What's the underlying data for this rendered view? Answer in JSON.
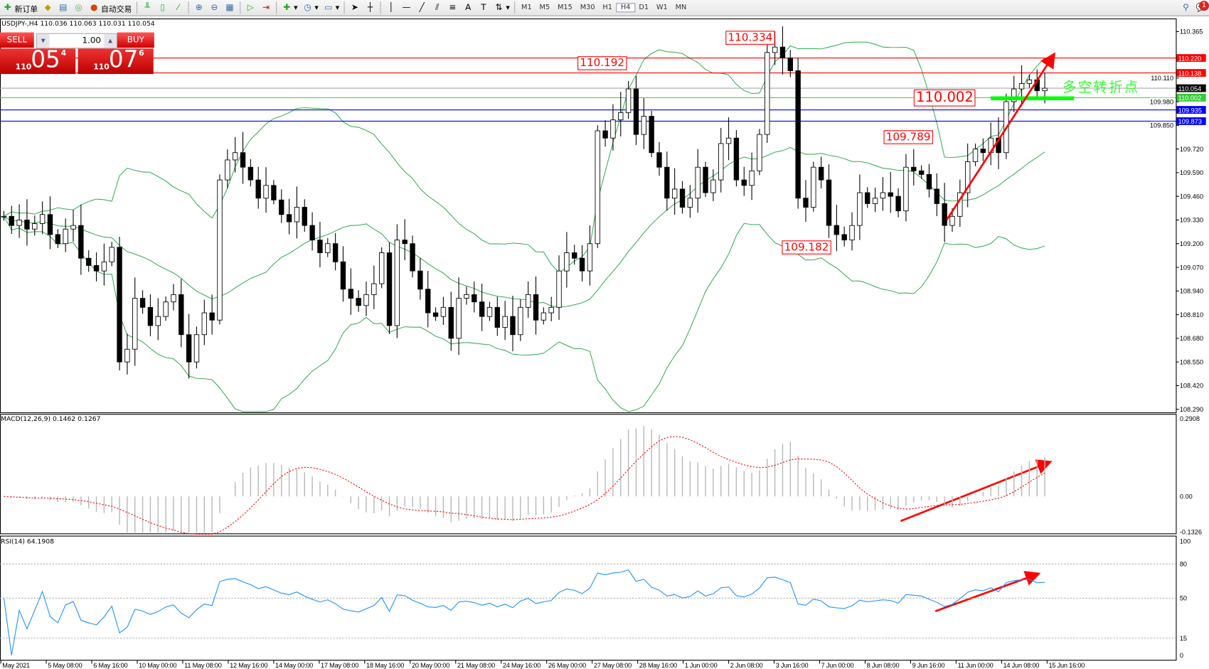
{
  "toolbar": {
    "new_order": "新订单",
    "auto_trading": "自动交易",
    "timeframes": [
      "M1",
      "M5",
      "M15",
      "M30",
      "H1",
      "H4",
      "D1",
      "W1",
      "MN"
    ],
    "active_timeframe": "H4",
    "notification_count": "1"
  },
  "chart": {
    "title": "USDJPY-,H4  110.036 110.063 110.031 110.054"
  },
  "trade_panel": {
    "sell_label": "SELL",
    "buy_label": "BUY",
    "lot": "1.00",
    "sell_small": "110",
    "sell_big": "05",
    "sell_tick": "4",
    "buy_small": "110",
    "buy_big": "07",
    "buy_tick": "6"
  },
  "annotations": {
    "high1": "110.334",
    "high2": "110.192",
    "level": "110.002",
    "mid": "109.789",
    "low": "109.182",
    "note": "多空转折点"
  },
  "colors": {
    "candle_up": "#ffffff",
    "candle_down": "#000000",
    "bands": "#2aa84a",
    "arrow": "#ff0000",
    "macd_signal": "#ff0000",
    "rsi": "#1e90ff"
  },
  "chart_data": [
    {
      "type": "candlestick",
      "symbol": "USDJPY-",
      "timeframe": "H4",
      "ylim": [
        108.29,
        110.365
      ],
      "price_ticks": [
        "110.365",
        "110.110",
        "109.980",
        "109.850",
        "109.720",
        "109.590",
        "109.460",
        "109.330",
        "109.200",
        "109.070",
        "108.940",
        "108.810",
        "108.680",
        "108.550",
        "108.420",
        "108.290"
      ],
      "closes": [
        109.35,
        109.3,
        109.33,
        109.28,
        109.31,
        109.36,
        109.25,
        109.2,
        109.28,
        109.3,
        109.12,
        109.08,
        109.05,
        109.1,
        109.18,
        108.55,
        108.62,
        108.9,
        108.85,
        108.75,
        108.8,
        108.88,
        108.92,
        108.7,
        108.55,
        108.7,
        108.82,
        108.78,
        109.55,
        109.66,
        109.7,
        109.62,
        109.55,
        109.45,
        109.52,
        109.44,
        109.36,
        109.32,
        109.4,
        109.3,
        109.22,
        109.15,
        109.2,
        109.1,
        108.95,
        108.9,
        108.86,
        108.92,
        108.98,
        109.15,
        108.75,
        109.22,
        109.2,
        109.05,
        108.95,
        108.82,
        108.8,
        108.85,
        108.68,
        108.9,
        108.92,
        108.88,
        108.8,
        108.85,
        108.74,
        108.8,
        108.7,
        108.85,
        108.92,
        108.78,
        108.82,
        108.85,
        109.05,
        109.15,
        109.12,
        109.05,
        109.2,
        109.82,
        109.78,
        109.88,
        109.92,
        110.05,
        109.8,
        109.9,
        109.7,
        109.62,
        109.45,
        109.5,
        109.4,
        109.45,
        109.62,
        109.48,
        109.55,
        109.75,
        109.78,
        109.55,
        109.52,
        109.6,
        109.8,
        110.25,
        110.28,
        110.22,
        110.15,
        109.45,
        109.4,
        109.62,
        109.55,
        109.3,
        109.25,
        109.22,
        109.3,
        109.48,
        109.42,
        109.45,
        109.48,
        109.46,
        109.38,
        109.62,
        109.6,
        109.58,
        109.5,
        109.42,
        109.3,
        109.35,
        109.48,
        109.65,
        109.72,
        109.7,
        109.78,
        109.7,
        109.98,
        110.05,
        110.08,
        110.1,
        110.04,
        110.054
      ],
      "hlines": [
        {
          "price": "110.220",
          "color": "#ff0000"
        },
        {
          "price": "110.138",
          "color": "#ff0000"
        },
        {
          "price": "110.054",
          "color": "#000000"
        },
        {
          "price": "110.002",
          "color": "#33cc33"
        },
        {
          "price": "109.935",
          "color": "#0000ff"
        },
        {
          "price": "109.873",
          "color": "#0000ff"
        }
      ],
      "indicator": "Bollinger Bands (20, 2)"
    },
    {
      "type": "bar+line",
      "title": "MACD(12,26,9) 0.1462 0.1267",
      "ylim": [
        -0.1326,
        0.2908
      ],
      "ticks": [
        "0.2908",
        "0.00",
        "-0.1326"
      ]
    },
    {
      "type": "line",
      "title": "RSI(14) 64.1908",
      "ylim": [
        0,
        100
      ],
      "ticks": [
        "100",
        "80",
        "50",
        "15",
        "0"
      ]
    }
  ],
  "time_axis": [
    "May 2021",
    "5 May 08:00",
    "6 May 16:00",
    "10 May 00:00",
    "11 May 08:00",
    "12 May 16:00",
    "14 May 00:00",
    "17 May 08:00",
    "18 May 16:00",
    "20 May 00:00",
    "21 May 08:00",
    "24 May 16:00",
    "26 May 00:00",
    "27 May 08:00",
    "28 May 16:00",
    "1 Jun 00:00",
    "2 Jun 08:00",
    "3 Jun 16:00",
    "7 Jun 00:00",
    "8 Jun 08:00",
    "9 Jun 16:00",
    "11 Jun 00:00",
    "14 Jun 08:00",
    "15 Jun 16:00"
  ]
}
